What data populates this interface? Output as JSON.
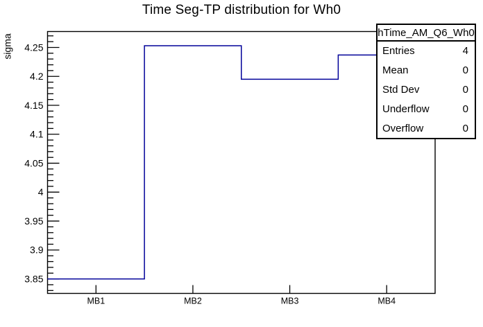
{
  "chart_data": {
    "type": "line",
    "style": "step-histogram",
    "title": "Time Seg-TP distribution for Wh0",
    "xlabel": "",
    "ylabel": "sigma",
    "categories": [
      "MB1",
      "MB2",
      "MB3",
      "MB4"
    ],
    "values": [
      3.85,
      4.253,
      4.195,
      4.237
    ],
    "ylim": [
      3.825,
      4.2775
    ],
    "yticks": {
      "major": [
        3.85,
        3.9,
        3.95,
        4.0,
        4.05,
        4.1,
        4.15,
        4.2,
        4.25
      ],
      "labels": [
        "3.85",
        "3.9",
        "3.95",
        "4",
        "4.05",
        "4.1",
        "4.15",
        "4.2",
        "4.25"
      ],
      "minor_step": 0.01
    },
    "grid": "off",
    "legend": "none",
    "line_color": "#000099",
    "frame_color": "#000000"
  },
  "stats_box": {
    "title": "hTime_AM_Q6_Wh0",
    "rows": [
      {
        "label": "Entries",
        "value": "4"
      },
      {
        "label": "Mean",
        "value": "0"
      },
      {
        "label": "Std Dev",
        "value": "0"
      },
      {
        "label": "Underflow",
        "value": "0"
      },
      {
        "label": "Overflow",
        "value": "0"
      }
    ]
  }
}
